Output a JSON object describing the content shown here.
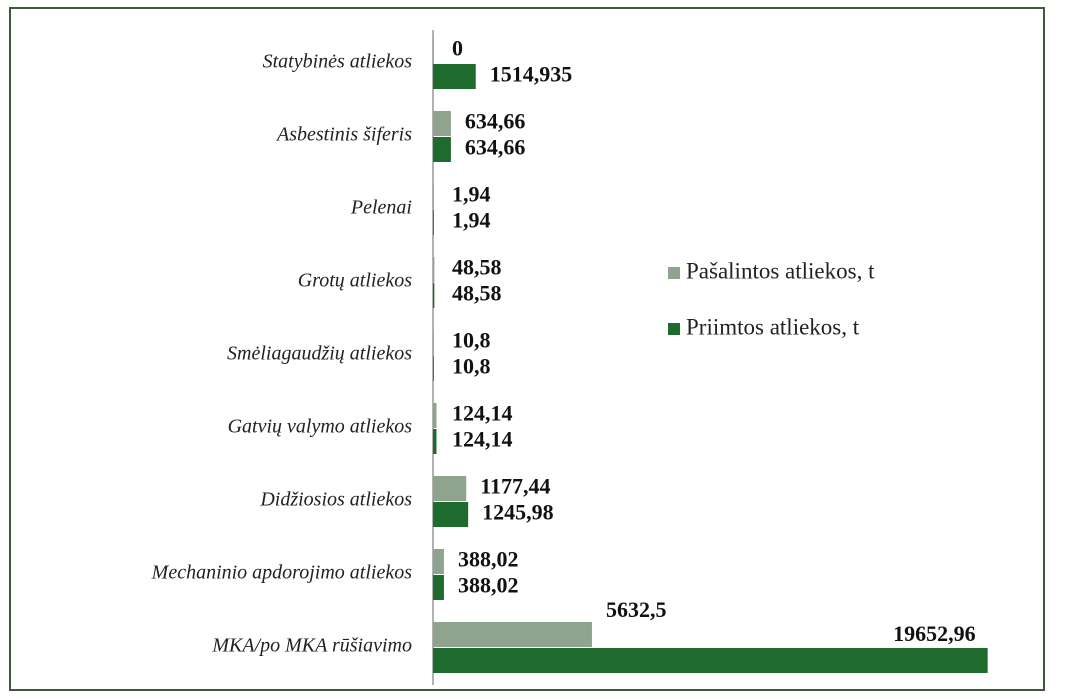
{
  "chart_data": {
    "type": "bar",
    "orientation": "horizontal",
    "categories": [
      "Statybinės atliekos",
      "Asbestinis šiferis",
      "Pelenai",
      "Grotų atliekos",
      "Smėliagaudžių atliekos",
      "Gatvių valymo atliekos",
      "Didžiosios atliekos",
      "Mechaninio apdorojimo atliekos",
      "MKA/po MKA rūšiavimo"
    ],
    "series": [
      {
        "name": "Pašalintos atliekos, t",
        "color": "#8fa38e",
        "values": [
          0,
          634.66,
          1.94,
          48.58,
          10.8,
          124.14,
          1177.44,
          388.02,
          5632.5
        ],
        "value_labels": [
          "0",
          "634,66",
          "1,94",
          "48,58",
          "10,8",
          "124,14",
          "1177,44",
          "388,02",
          "5632,5"
        ]
      },
      {
        "name": "Priimtos atliekos, t",
        "color": "#1f6b2e",
        "values": [
          1514.935,
          634.66,
          1.94,
          48.58,
          10.8,
          124.14,
          1245.98,
          388.02,
          19652.96
        ],
        "value_labels": [
          "1514,935",
          "634,66",
          "1,94",
          "48,58",
          "10,8",
          "124,14",
          "1245,98",
          "388,02",
          "19652,96"
        ]
      }
    ],
    "xlim": [
      0,
      19700
    ],
    "legend": "right"
  }
}
